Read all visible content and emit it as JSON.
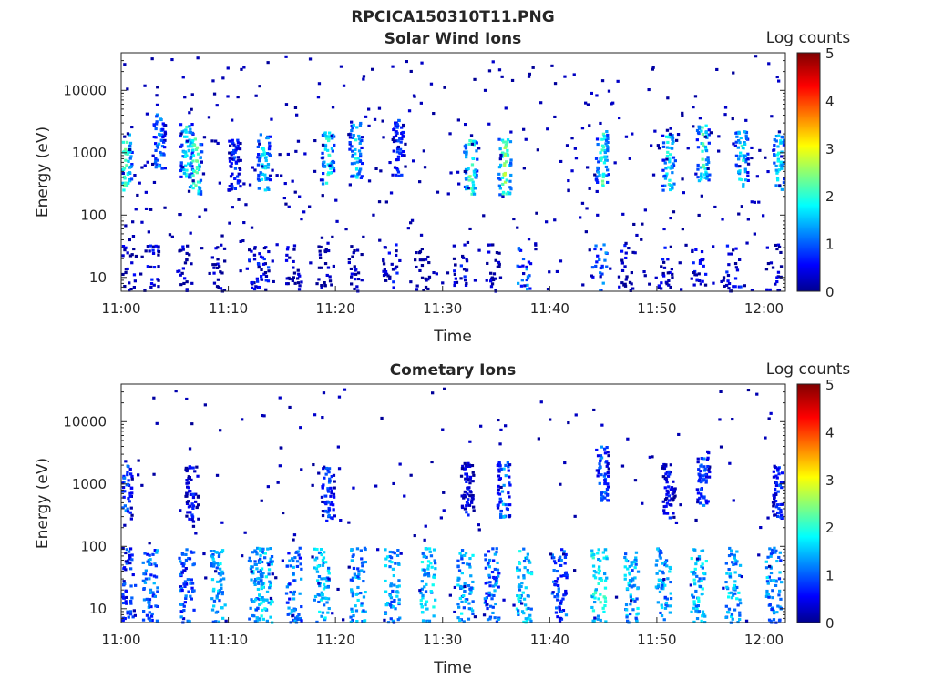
{
  "figure_title": "RPCICA150310T11.PNG",
  "chart_data": [
    {
      "type": "heatmap",
      "title": "Solar Wind Ions",
      "xlabel": "Time",
      "ylabel": "Energy (eV)",
      "y_scale": "log",
      "ylim": [
        6,
        40000
      ],
      "xlim": [
        "11:00",
        "12:02"
      ],
      "x_ticks": [
        "11:00",
        "11:10",
        "11:20",
        "11:30",
        "11:40",
        "11:50",
        "12:00"
      ],
      "y_ticks": [
        "10",
        "100",
        "1000",
        "10000"
      ],
      "colorbar": {
        "label": "Log counts",
        "ticks": [
          "0",
          "1",
          "2",
          "3",
          "4",
          "5"
        ],
        "range": [
          0,
          5
        ],
        "colormap": "jet"
      },
      "bursts": [
        {
          "t": 0.3,
          "e": 700,
          "v": 2.8
        },
        {
          "t": 3.4,
          "e": 1500,
          "v": 1.8
        },
        {
          "t": 6.0,
          "e": 1100,
          "v": 2.3
        },
        {
          "t": 6.8,
          "e": 600,
          "v": 3.0
        },
        {
          "t": 10.5,
          "e": 700,
          "v": 1.2
        },
        {
          "t": 13.2,
          "e": 700,
          "v": 2.4
        },
        {
          "t": 19.2,
          "e": 800,
          "v": 2.5
        },
        {
          "t": 21.8,
          "e": 1100,
          "v": 2.2
        },
        {
          "t": 25.8,
          "e": 1200,
          "v": 1.3
        },
        {
          "t": 32.5,
          "e": 600,
          "v": 2.8
        },
        {
          "t": 35.7,
          "e": 600,
          "v": 3.0
        },
        {
          "t": 44.8,
          "e": 800,
          "v": 2.5
        },
        {
          "t": 51.0,
          "e": 700,
          "v": 2.4
        },
        {
          "t": 54.2,
          "e": 1000,
          "v": 2.6
        },
        {
          "t": 57.8,
          "e": 800,
          "v": 2.4
        },
        {
          "t": 61.3,
          "e": 700,
          "v": 2.3
        }
      ],
      "low_energy_bursts": [
        {
          "t": 0.5,
          "v": 0.7
        },
        {
          "t": 2.7,
          "v": 0.8
        },
        {
          "t": 5.8,
          "v": 0.7
        },
        {
          "t": 9.0,
          "v": 0.6
        },
        {
          "t": 12.3,
          "v": 0.9
        },
        {
          "t": 13.0,
          "v": 1.0
        },
        {
          "t": 16.0,
          "v": 0.6
        },
        {
          "t": 18.8,
          "v": 0.5
        },
        {
          "t": 21.8,
          "v": 0.7
        },
        {
          "t": 25.0,
          "v": 0.9
        },
        {
          "t": 28.0,
          "v": 0.5
        },
        {
          "t": 31.5,
          "v": 0.9
        },
        {
          "t": 34.5,
          "v": 0.6
        },
        {
          "t": 37.5,
          "v": 1.5
        },
        {
          "t": 44.5,
          "v": 1.5
        },
        {
          "t": 47.0,
          "v": 0.8
        },
        {
          "t": 50.7,
          "v": 0.8
        },
        {
          "t": 53.8,
          "v": 0.8
        },
        {
          "t": 57.0,
          "v": 0.9
        },
        {
          "t": 60.8,
          "v": 0.7
        }
      ]
    },
    {
      "type": "heatmap",
      "title": "Cometary Ions",
      "xlabel": "Time",
      "ylabel": "Energy (eV)",
      "y_scale": "log",
      "ylim": [
        6,
        40000
      ],
      "xlim": [
        "11:00",
        "12:02"
      ],
      "x_ticks": [
        "11:00",
        "11:10",
        "11:20",
        "11:30",
        "11:40",
        "11:50",
        "12:00"
      ],
      "y_ticks": [
        "10",
        "100",
        "1000",
        "10000"
      ],
      "colorbar": {
        "label": "Log counts",
        "ticks": [
          "0",
          "1",
          "2",
          "3",
          "4",
          "5"
        ],
        "range": [
          0,
          5
        ],
        "colormap": "jet"
      },
      "bursts": [
        {
          "t": 0.3,
          "e": 700,
          "v": 1.5
        },
        {
          "t": 6.5,
          "e": 700,
          "v": 1.0
        },
        {
          "t": 19.2,
          "e": 700,
          "v": 1.4
        },
        {
          "t": 32.2,
          "e": 800,
          "v": 1.0
        },
        {
          "t": 35.6,
          "e": 800,
          "v": 1.8
        },
        {
          "t": 44.8,
          "e": 1500,
          "v": 1.6
        },
        {
          "t": 51.0,
          "e": 800,
          "v": 1.0
        },
        {
          "t": 54.2,
          "e": 1200,
          "v": 1.5
        },
        {
          "t": 61.3,
          "e": 800,
          "v": 1.2
        }
      ],
      "low_energy_bursts": [
        {
          "t": 0.5,
          "v": 1.2
        },
        {
          "t": 2.6,
          "v": 1.6
        },
        {
          "t": 6.0,
          "v": 1.4
        },
        {
          "t": 8.9,
          "v": 1.9
        },
        {
          "t": 12.5,
          "v": 1.9
        },
        {
          "t": 13.3,
          "v": 2.0
        },
        {
          "t": 16.0,
          "v": 1.6
        },
        {
          "t": 18.6,
          "v": 2.0
        },
        {
          "t": 22.0,
          "v": 1.8
        },
        {
          "t": 25.2,
          "v": 1.8
        },
        {
          "t": 28.5,
          "v": 2.0
        },
        {
          "t": 32.0,
          "v": 1.9
        },
        {
          "t": 34.5,
          "v": 1.6
        },
        {
          "t": 37.5,
          "v": 2.0
        },
        {
          "t": 40.8,
          "v": 1.4
        },
        {
          "t": 44.5,
          "v": 2.3
        },
        {
          "t": 47.5,
          "v": 1.9
        },
        {
          "t": 50.5,
          "v": 1.8
        },
        {
          "t": 53.8,
          "v": 2.0
        },
        {
          "t": 57.0,
          "v": 1.9
        },
        {
          "t": 60.8,
          "v": 1.8
        }
      ]
    }
  ]
}
